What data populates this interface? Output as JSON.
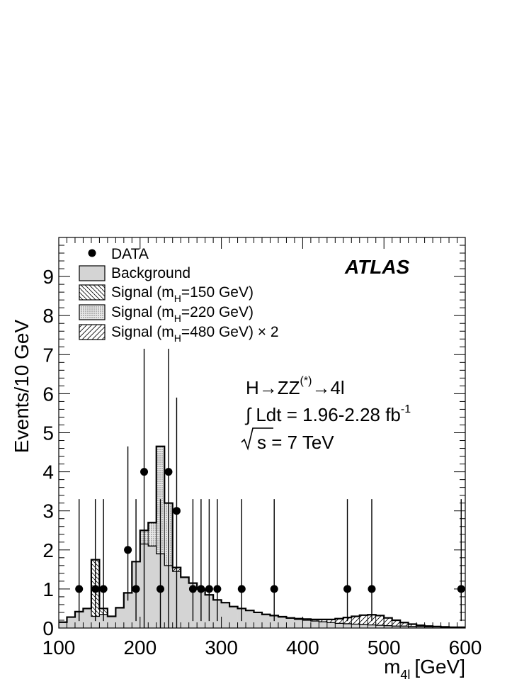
{
  "chart_data": {
    "type": "bar",
    "title": "",
    "experiment_label": "ATLAS",
    "xlabel": "m",
    "xlabel_sub": "4l",
    "xlabel_unit": "[GeV]",
    "ylabel": "Events/10 GeV",
    "xlim": [
      100,
      600
    ],
    "ylim": [
      0,
      10
    ],
    "x_ticks": [
      "100",
      "200",
      "300",
      "400",
      "500",
      "600"
    ],
    "y_ticks": [
      "0",
      "1",
      "2",
      "3",
      "4",
      "5",
      "6",
      "7",
      "8",
      "9"
    ],
    "legend": {
      "position": "top-left",
      "entries": [
        {
          "id": "data",
          "label": "DATA",
          "style": "marker"
        },
        {
          "id": "bkg",
          "label": "Background",
          "style": "fill-gray"
        },
        {
          "id": "sig150",
          "label": "Signal (m",
          "sub": "H",
          "rest": "=150 GeV)",
          "style": "hatch-back"
        },
        {
          "id": "sig220",
          "label": "Signal (m",
          "sub": "H",
          "rest": "=220 GeV)",
          "style": "dots"
        },
        {
          "id": "sig480",
          "label": "Signal (m",
          "sub": "H",
          "rest": "=480 GeV) × 2",
          "style": "hatch-fwd"
        }
      ]
    },
    "annotations": {
      "process": "H→ZZ",
      "process_sup": "(*)",
      "process_end": "→4l",
      "lumi_prefix": "∫ Ldt = 1.96-2.28 fb",
      "lumi_sup": "-1",
      "energy_rest": "s = 7 TeV"
    },
    "bin_edges": [
      100,
      110,
      120,
      130,
      140,
      150,
      160,
      170,
      180,
      190,
      200,
      210,
      220,
      230,
      240,
      250,
      260,
      270,
      280,
      290,
      300,
      310,
      320,
      330,
      340,
      350,
      360,
      370,
      380,
      390,
      400,
      410,
      420,
      430,
      440,
      450,
      460,
      470,
      480,
      490,
      500,
      510,
      520,
      530,
      540,
      550,
      560,
      570,
      580,
      590,
      600
    ],
    "background": [
      0.15,
      0.28,
      0.42,
      0.5,
      0.3,
      0.35,
      0.3,
      0.52,
      0.9,
      1.7,
      2.15,
      2.1,
      1.9,
      1.6,
      1.45,
      1.3,
      1.15,
      1.0,
      0.85,
      0.72,
      0.65,
      0.55,
      0.5,
      0.45,
      0.4,
      0.35,
      0.32,
      0.28,
      0.25,
      0.22,
      0.2,
      0.18,
      0.16,
      0.14,
      0.12,
      0.11,
      0.1,
      0.09,
      0.08,
      0.07,
      0.06,
      0.05,
      0.05,
      0.04,
      0.04,
      0.03,
      0.03,
      0.03,
      0.02,
      0.02
    ],
    "total_stack": [
      0.15,
      0.28,
      0.42,
      0.5,
      1.75,
      0.5,
      0.3,
      0.52,
      0.9,
      1.7,
      2.5,
      2.7,
      4.65,
      3.2,
      1.55,
      1.3,
      1.15,
      1.0,
      0.85,
      0.72,
      0.65,
      0.55,
      0.5,
      0.45,
      0.4,
      0.35,
      0.32,
      0.29,
      0.26,
      0.24,
      0.23,
      0.22,
      0.22,
      0.22,
      0.24,
      0.27,
      0.3,
      0.33,
      0.34,
      0.32,
      0.26,
      0.2,
      0.14,
      0.1,
      0.07,
      0.05,
      0.04,
      0.03,
      0.02,
      0.02
    ],
    "series": [
      {
        "name": "DATA",
        "points": [
          {
            "x": 125,
            "y": 1,
            "lo": 0.18,
            "hi": 3.3
          },
          {
            "x": 145,
            "y": 1,
            "lo": 0.18,
            "hi": 3.3
          },
          {
            "x": 155,
            "y": 1,
            "lo": 0.18,
            "hi": 3.3
          },
          {
            "x": 185,
            "y": 2,
            "lo": 0.7,
            "hi": 4.65
          },
          {
            "x": 195,
            "y": 1,
            "lo": 0.18,
            "hi": 3.3
          },
          {
            "x": 205,
            "y": 4,
            "lo": 0.0,
            "hi": 7.15
          },
          {
            "x": 225,
            "y": 1,
            "lo": 0.0,
            "hi": 3.3
          },
          {
            "x": 235,
            "y": 4,
            "lo": 0.0,
            "hi": 7.15
          },
          {
            "x": 245,
            "y": 3,
            "lo": 0.0,
            "hi": 5.9
          },
          {
            "x": 265,
            "y": 1,
            "lo": 0.18,
            "hi": 3.3
          },
          {
            "x": 275,
            "y": 1,
            "lo": 0.18,
            "hi": 3.3
          },
          {
            "x": 285,
            "y": 1,
            "lo": 0.18,
            "hi": 3.3
          },
          {
            "x": 295,
            "y": 1,
            "lo": 0.18,
            "hi": 3.3
          },
          {
            "x": 325,
            "y": 1,
            "lo": 0.18,
            "hi": 3.3
          },
          {
            "x": 365,
            "y": 1,
            "lo": 0.18,
            "hi": 3.3
          },
          {
            "x": 455,
            "y": 1,
            "lo": 0.18,
            "hi": 3.3
          },
          {
            "x": 485,
            "y": 1,
            "lo": 0.18,
            "hi": 3.3
          },
          {
            "x": 595,
            "y": 1,
            "lo": 0.18,
            "hi": 3.3
          }
        ]
      }
    ]
  }
}
